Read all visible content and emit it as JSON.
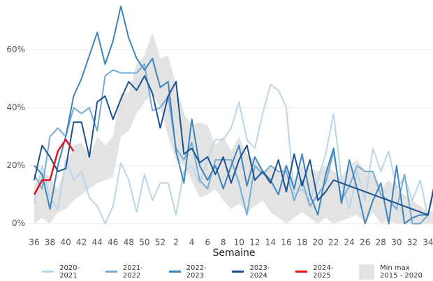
{
  "chart_data": {
    "type": "line",
    "x_label": "Semaine",
    "categories": [
      "36",
      null,
      "38",
      null,
      "40",
      null,
      "42",
      null,
      "44",
      null,
      "46",
      null,
      "48",
      null,
      "50",
      null,
      "52",
      null,
      "2",
      null,
      "4",
      null,
      "6",
      null,
      "8",
      null,
      "10",
      null,
      "12",
      null,
      "14",
      null,
      "16",
      null,
      "18",
      null,
      "20",
      null,
      "22",
      null,
      "24",
      null,
      "26",
      null,
      "28",
      null,
      "30",
      null,
      "32",
      null,
      "34",
      null
    ],
    "ylim": [
      -2,
      75
    ],
    "yticks": [
      {
        "value": 0,
        "label": "0%"
      },
      {
        "value": 20,
        "label": "20%"
      },
      {
        "value": 40,
        "label": "40%"
      },
      {
        "value": 60,
        "label": "60%"
      }
    ],
    "grid": true,
    "band": {
      "name": "Min max 2015 - 2020",
      "color": "#e3e3e3",
      "max": [
        13,
        18,
        16,
        12,
        20,
        27,
        28,
        23,
        30,
        27,
        30,
        45,
        45,
        55,
        58,
        66,
        57,
        58,
        48,
        38,
        34,
        35,
        34,
        27,
        30,
        25,
        30,
        24,
        22,
        18,
        20,
        18,
        20,
        15,
        20,
        19,
        18,
        20,
        18,
        16,
        20,
        22,
        18,
        18,
        12,
        15,
        12,
        10,
        8,
        6,
        4,
        4
      ],
      "min": [
        0,
        2,
        0,
        4,
        5,
        8,
        10,
        12,
        14,
        15,
        16,
        30,
        32,
        38,
        42,
        45,
        40,
        30,
        22,
        20,
        15,
        9,
        10,
        12,
        8,
        5,
        7,
        4,
        6,
        8,
        4,
        2,
        0,
        2,
        4,
        2,
        0,
        2,
        0,
        1,
        2,
        3,
        0,
        4,
        0,
        1,
        0,
        0,
        0,
        0,
        0,
        0
      ]
    },
    "series": [
      {
        "name": "2020-2021",
        "color": "#bcd6e8",
        "values": [
          7,
          20,
          9,
          5,
          22,
          15,
          18,
          9,
          6,
          0,
          6,
          21,
          15,
          4,
          17,
          8,
          14,
          14,
          3,
          18,
          20,
          14,
          22,
          29,
          29,
          33,
          42,
          29,
          26,
          38,
          48,
          46,
          40,
          10,
          12,
          8,
          15,
          24,
          38,
          15,
          5,
          18,
          8,
          26,
          18,
          25,
          12,
          16,
          8,
          15,
          2,
          null
        ]
      },
      {
        "name": "2021-2022",
        "color": "#75acd3",
        "values": [
          17,
          12,
          30,
          33,
          30,
          40,
          38,
          40,
          32,
          51,
          53,
          52,
          52,
          52,
          55,
          39,
          40,
          44,
          26,
          22,
          28,
          15,
          12,
          22,
          22,
          22,
          14,
          3,
          20,
          17,
          20,
          18,
          18,
          8,
          15,
          6,
          10,
          14,
          25,
          8,
          13,
          20,
          18,
          18,
          10,
          8,
          5,
          17,
          0,
          0,
          3,
          null
        ]
      },
      {
        "name": "2022-2023",
        "color": "#3d84bd",
        "values": [
          20,
          17,
          5,
          20,
          30,
          44,
          50,
          58,
          66,
          55,
          63,
          75,
          64,
          57,
          53,
          57,
          47,
          49,
          25,
          14,
          36,
          20,
          15,
          20,
          12,
          20,
          27,
          13,
          23,
          18,
          15,
          10,
          20,
          12,
          24,
          10,
          3,
          17,
          26,
          7,
          22,
          12,
          0,
          8,
          14,
          0,
          20,
          0,
          2,
          3,
          3,
          15
        ]
      },
      {
        "name": "2023-2024",
        "color": "#1c5190",
        "values": [
          15,
          27,
          23,
          18,
          19,
          35,
          35,
          23,
          42,
          44,
          36,
          43,
          49,
          46,
          51,
          45,
          33,
          44,
          49,
          24,
          26,
          21,
          23,
          17,
          23,
          14,
          22,
          27,
          15,
          18,
          14,
          22,
          11,
          24,
          13,
          22,
          8,
          11,
          15,
          14,
          13,
          12,
          11,
          10,
          9,
          8,
          7,
          6,
          5,
          4,
          3,
          16
        ]
      },
      {
        "name": "2024-2025",
        "color": "#e8141c",
        "values": [
          10,
          15,
          15,
          25,
          29,
          25,
          null,
          null,
          null,
          null,
          null,
          null,
          null,
          null,
          null,
          null,
          null,
          null,
          null,
          null,
          null,
          null,
          null,
          null,
          null,
          null,
          null,
          null,
          null,
          null,
          null,
          null,
          null,
          null,
          null,
          null,
          null,
          null,
          null,
          null,
          null,
          null,
          null,
          null,
          null,
          null,
          null,
          null,
          null,
          null,
          null,
          null
        ]
      }
    ]
  }
}
